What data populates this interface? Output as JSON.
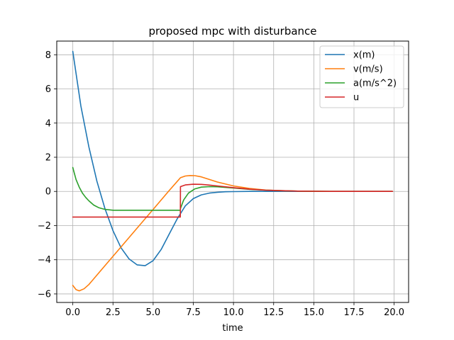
{
  "chart_data": {
    "type": "line",
    "title": "proposed mpc with disturbance",
    "xlabel": "time",
    "ylabel": "",
    "xlim": [
      -1.0,
      20.9
    ],
    "ylim": [
      -6.5,
      8.8
    ],
    "xticks": [
      0.0,
      2.5,
      5.0,
      7.5,
      10.0,
      12.5,
      15.0,
      17.5,
      20.0
    ],
    "xtick_labels": [
      "0.0",
      "2.5",
      "5.0",
      "7.5",
      "10.0",
      "12.5",
      "15.0",
      "17.5",
      "20.0"
    ],
    "yticks": [
      -6,
      -4,
      -2,
      0,
      2,
      4,
      6,
      8
    ],
    "ytick_labels": [
      "−6",
      "−4",
      "−2",
      "0",
      "2",
      "4",
      "6",
      "8"
    ],
    "grid": true,
    "legend_position": "top-right",
    "series": [
      {
        "name": "x(m)",
        "color": "#1f77b4",
        "x": [
          0,
          0.5,
          1.0,
          1.5,
          2.0,
          2.5,
          3.0,
          3.5,
          4.0,
          4.5,
          5.0,
          5.5,
          6.0,
          6.5,
          6.7,
          7.0,
          7.5,
          8.0,
          8.5,
          9.0,
          9.5,
          10.0,
          11.0,
          12.0,
          13.0,
          14.0,
          16.0,
          18.0,
          19.9
        ],
        "y": [
          8.2,
          5.0,
          2.6,
          0.6,
          -1.0,
          -2.3,
          -3.3,
          -3.95,
          -4.3,
          -4.35,
          -4.05,
          -3.4,
          -2.5,
          -1.6,
          -1.3,
          -0.85,
          -0.42,
          -0.2,
          -0.1,
          -0.05,
          -0.02,
          -0.01,
          0,
          0,
          0,
          0,
          0,
          0,
          0
        ]
      },
      {
        "name": "v(m/s)",
        "color": "#ff7f0e",
        "x": [
          0,
          0.2,
          0.4,
          0.7,
          1.0,
          2.0,
          3.0,
          4.0,
          5.0,
          6.0,
          6.7,
          7.0,
          7.3,
          7.6,
          8.0,
          8.5,
          9.0,
          10.0,
          11.0,
          12.0,
          13.0,
          14.0,
          16.0,
          18.0,
          19.9
        ],
        "y": [
          -5.5,
          -5.75,
          -5.82,
          -5.7,
          -5.45,
          -4.35,
          -3.25,
          -2.15,
          -1.05,
          0.05,
          0.8,
          0.9,
          0.93,
          0.92,
          0.85,
          0.7,
          0.55,
          0.32,
          0.17,
          0.08,
          0.04,
          0.02,
          0.0,
          0.0,
          0.0
        ]
      },
      {
        "name": "a(m/s^2)",
        "color": "#2ca02c",
        "x": [
          0,
          0.2,
          0.4,
          0.6,
          0.8,
          1.0,
          1.3,
          1.6,
          2.0,
          2.5,
          3.0,
          4.0,
          5.0,
          6.0,
          6.69,
          6.7,
          6.9,
          7.2,
          7.6,
          8.0,
          8.5,
          9.0,
          10.0,
          11.0,
          12.0,
          14.0,
          16.0,
          18.0,
          19.9
        ],
        "y": [
          1.4,
          0.7,
          0.25,
          -0.1,
          -0.35,
          -0.55,
          -0.8,
          -0.95,
          -1.05,
          -1.1,
          -1.1,
          -1.1,
          -1.1,
          -1.1,
          -1.1,
          -1.0,
          -0.5,
          -0.1,
          0.15,
          0.25,
          0.28,
          0.27,
          0.2,
          0.12,
          0.07,
          0.02,
          0.0,
          0.0,
          0.0
        ]
      },
      {
        "name": "u",
        "color": "#d62728",
        "x": [
          0,
          1.0,
          2.0,
          3.0,
          4.0,
          5.0,
          6.0,
          6.69,
          6.7,
          7.0,
          7.5,
          8.0,
          8.5,
          9.0,
          10.0,
          11.0,
          12.0,
          14.0,
          16.0,
          18.0,
          19.9
        ],
        "y": [
          -1.5,
          -1.5,
          -1.5,
          -1.5,
          -1.5,
          -1.5,
          -1.5,
          -1.5,
          0.28,
          0.38,
          0.42,
          0.41,
          0.37,
          0.32,
          0.22,
          0.13,
          0.07,
          0.02,
          0.0,
          0.0,
          0.0
        ]
      }
    ]
  }
}
